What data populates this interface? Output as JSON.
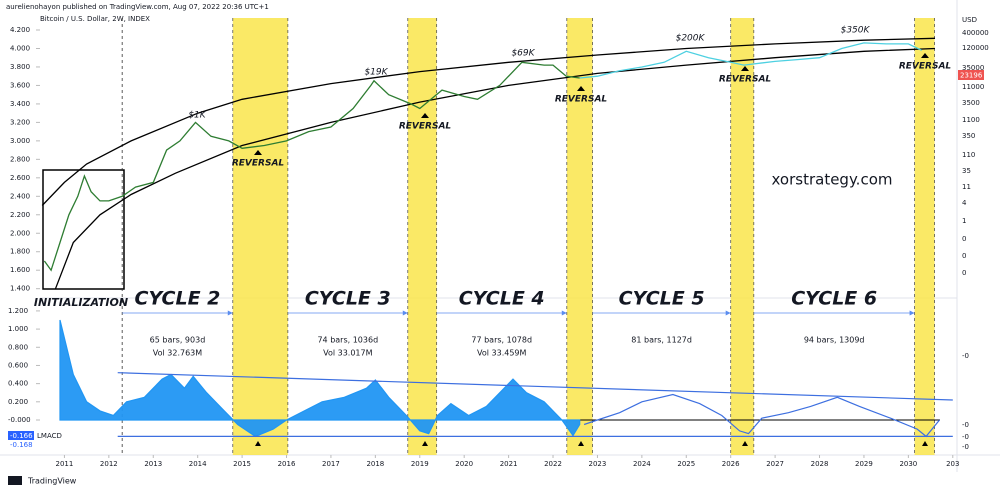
{
  "header": {
    "publisher": "aurelienohayon published on TradingView.com, Aug 07, 2022 20:36 UTC+1",
    "symbol": "Bitcoin / U.S. Dollar, 2W, INDEX",
    "watermark": "xorstrategy.com",
    "footer": "TradingView",
    "price_scale_title": "USD",
    "price_scale_labels": [
      "400000",
      "120000",
      "35000",
      "11000",
      "3500",
      "1100",
      "350",
      "110",
      "35",
      "11",
      "4",
      "1",
      "0",
      "0",
      "0"
    ],
    "last_price": "23196"
  },
  "chart_data": [
    {
      "type": "line",
      "xlim": [
        2010.45,
        2031.05
      ],
      "ylim": [
        1.31,
        4.33
      ],
      "yticks": [
        {
          "value": 1.4,
          "label": "1.400"
        },
        {
          "value": 1.6,
          "label": "1.600"
        },
        {
          "value": 1.8,
          "label": "1.800"
        },
        {
          "value": 2.0,
          "label": "2.000"
        },
        {
          "value": 2.2,
          "label": "2.200"
        },
        {
          "value": 2.4,
          "label": "2.400"
        },
        {
          "value": 2.6,
          "label": "2.600"
        },
        {
          "value": 2.8,
          "label": "2.800"
        },
        {
          "value": 3.0,
          "label": "3.000"
        },
        {
          "value": 3.2,
          "label": "3.200"
        },
        {
          "value": 3.4,
          "label": "3.400"
        },
        {
          "value": 3.6,
          "label": "3.600"
        },
        {
          "value": 3.8,
          "label": "3.800"
        },
        {
          "value": 4.0,
          "label": "4.000"
        },
        {
          "value": 4.2,
          "label": "4.200"
        }
      ],
      "highlight_ranges": [
        [
          2014.79,
          2016.03
        ],
        [
          2018.73,
          2019.38
        ],
        [
          2022.31,
          2022.89
        ],
        [
          2026.0,
          2026.52
        ],
        [
          2030.14,
          2030.59
        ]
      ],
      "highlight_color": "#f9e54b",
      "series": [
        {
          "color": "#000000",
          "x": [
            2010.5,
            2011.0,
            2011.5,
            2012.5,
            2014,
            2015,
            2017,
            2019,
            2021,
            2023,
            2025,
            2027,
            2029,
            2030.6
          ],
          "values": [
            2.3,
            2.55,
            2.75,
            3.0,
            3.3,
            3.45,
            3.62,
            3.75,
            3.85,
            3.93,
            4.0,
            4.05,
            4.09,
            4.11
          ]
        },
        {
          "color": "#000000",
          "x": [
            2010.8,
            2011.2,
            2011.8,
            2012.5,
            2013.5,
            2015,
            2017,
            2019,
            2021,
            2023,
            2025,
            2027,
            2029,
            2030.6
          ],
          "values": [
            1.4,
            1.9,
            2.2,
            2.42,
            2.65,
            2.95,
            3.2,
            3.42,
            3.6,
            3.73,
            3.82,
            3.9,
            3.97,
            4.0
          ]
        },
        {
          "color": "#2e7d32",
          "x": [
            2010.55,
            2010.7,
            2010.9,
            2011.1,
            2011.3,
            2011.45,
            2011.6,
            2011.8,
            2012.0,
            2012.3,
            2012.6,
            2013.0,
            2013.3,
            2013.6,
            2013.95,
            2014.3,
            2014.7,
            2015.0,
            2015.5,
            2016.0,
            2016.5,
            2017.0,
            2017.5,
            2017.9,
            2017.97,
            2018.3,
            2018.8,
            2019.0,
            2019.5,
            2020.0,
            2020.3,
            2020.8,
            2021.3,
            2021.8,
            2022.0,
            2022.3,
            2022.6
          ],
          "values": [
            1.7,
            1.6,
            1.9,
            2.2,
            2.4,
            2.62,
            2.45,
            2.35,
            2.35,
            2.4,
            2.5,
            2.55,
            2.9,
            3.0,
            3.2,
            3.05,
            3.0,
            2.92,
            2.95,
            3.0,
            3.1,
            3.15,
            3.35,
            3.6,
            3.65,
            3.5,
            3.4,
            3.35,
            3.55,
            3.48,
            3.45,
            3.6,
            3.85,
            3.82,
            3.82,
            3.7,
            3.68
          ]
        },
        {
          "color": "#4dd0e1",
          "x": [
            2022.6,
            2023.0,
            2023.5,
            2024.0,
            2024.5,
            2025.0,
            2025.5,
            2026.0,
            2026.3,
            2027.0,
            2027.5,
            2028.0,
            2028.5,
            2029.0,
            2029.5,
            2030.0,
            2030.3
          ],
          "values": [
            3.68,
            3.7,
            3.76,
            3.8,
            3.85,
            3.97,
            3.9,
            3.85,
            3.82,
            3.86,
            3.88,
            3.9,
            4.0,
            4.06,
            4.05,
            4.05,
            3.98
          ]
        }
      ],
      "peaks": [
        "$1K",
        "$19K",
        "$69K",
        "$200K",
        "$350K"
      ],
      "reversals": [
        "REVERSAL",
        "REVERSAL",
        "REVERSAL",
        "REVERSAL",
        "REVERSAL"
      ],
      "initialization": "INITIALIZATION"
    },
    {
      "type": "area",
      "title": "LMACD",
      "xlim": [
        2010.45,
        2031.05
      ],
      "ylim": [
        -0.385,
        1.32
      ],
      "yticks": [
        {
          "value": 1.2,
          "label": "1.200"
        },
        {
          "value": 1.0,
          "label": "1.000"
        },
        {
          "value": 0.8,
          "label": "0.800"
        },
        {
          "value": 0.6,
          "label": "0.600"
        },
        {
          "value": 0.4,
          "label": "0.400"
        },
        {
          "value": 0.2,
          "label": "0.200"
        },
        {
          "value": 0,
          "label": "-0.000"
        }
      ],
      "xticks": [
        2011,
        2012,
        2013,
        2014,
        2015,
        2016,
        2017,
        2018,
        2019,
        2020,
        2021,
        2022,
        2023,
        2024,
        2025,
        2026,
        2027,
        2028,
        2029,
        2030,
        {
          "value": 2031,
          "label": "203"
        }
      ],
      "value_labels": [
        "-0.166",
        "-0.168"
      ],
      "right_labels": [
        "-0",
        "-0",
        "-0",
        "-0"
      ],
      "cycle_start": 2012.3,
      "series": [
        {
          "color": "#2196f3",
          "fill": true,
          "x": [
            2010.9,
            2011.2,
            2011.5,
            2011.8,
            2012.1,
            2012.4,
            2012.8,
            2013.2,
            2013.4,
            2013.7,
            2013.9,
            2014.2,
            2014.6,
            2014.9,
            2015.3,
            2015.7,
            2016.0,
            2016.4,
            2016.8,
            2017.3,
            2017.8,
            2018.0,
            2018.3,
            2018.7,
            2019.0,
            2019.2,
            2019.4,
            2019.7,
            2020.1,
            2020.5,
            2020.9,
            2021.1,
            2021.4,
            2021.8,
            2022.2,
            2022.45,
            2022.6
          ],
          "values": [
            1.1,
            0.5,
            0.2,
            0.1,
            0.05,
            0.2,
            0.25,
            0.45,
            0.5,
            0.35,
            0.48,
            0.3,
            0.1,
            -0.05,
            -0.18,
            -0.1,
            0.0,
            0.1,
            0.2,
            0.25,
            0.35,
            0.44,
            0.25,
            0.05,
            -0.12,
            -0.15,
            0.05,
            0.18,
            0.05,
            0.15,
            0.35,
            0.45,
            0.3,
            0.2,
            0.0,
            -0.17,
            -0.05
          ]
        },
        {
          "color": "#3d6fe0",
          "x": [
            2022.7,
            2023.0,
            2023.5,
            2024.0,
            2024.7,
            2025.3,
            2025.8,
            2026.2,
            2026.4,
            2026.7,
            2027.3,
            2027.8,
            2028.4,
            2028.9,
            2029.6,
            2030.2,
            2030.4,
            2030.7
          ],
          "values": [
            -0.05,
            0.0,
            0.08,
            0.2,
            0.28,
            0.18,
            0.05,
            -0.12,
            -0.15,
            0.02,
            0.08,
            0.15,
            0.25,
            0.15,
            0.02,
            -0.1,
            -0.18,
            0.0
          ]
        },
        {
          "color": "#3d6fe0",
          "x": [
            2012.2,
            2031.0
          ],
          "values": [
            0.52,
            0.22
          ]
        },
        {
          "color": "#3d6fe0",
          "x": [
            2012.2,
            2031.0
          ],
          "values": [
            -0.18,
            -0.18
          ]
        }
      ],
      "cycles": [
        {
          "label": "CYCLE 2",
          "stats": [
            "65 bars, 903d",
            "Vol 32.763M"
          ]
        },
        {
          "label": "CYCLE 3",
          "stats": [
            "74 bars, 1036d",
            "Vol 33.017M"
          ]
        },
        {
          "label": "CYCLE 4",
          "stats": [
            "77 bars, 1078d",
            "Vol 33.459M"
          ]
        },
        {
          "label": "CYCLE 5",
          "stats": [
            "81 bars, 1127d"
          ]
        },
        {
          "label": "CYCLE 6",
          "stats": [
            "94 bars, 1309d"
          ]
        }
      ]
    }
  ]
}
